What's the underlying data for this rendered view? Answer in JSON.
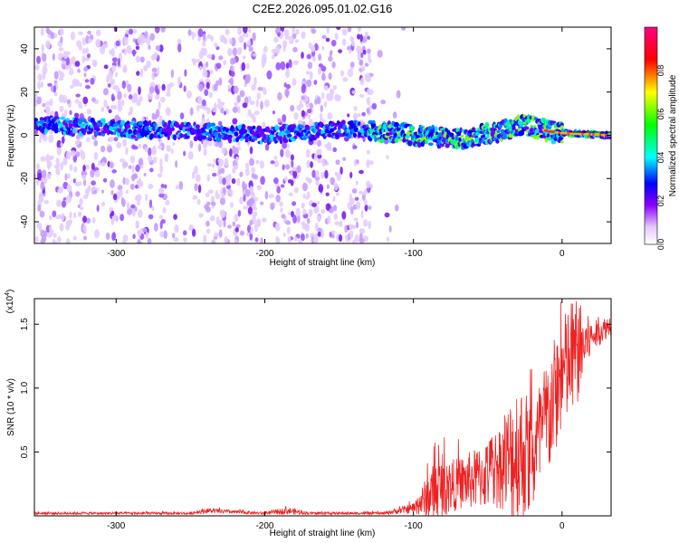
{
  "title": "C2E2.2026.095.01.02.G16",
  "chart_data": [
    {
      "type": "heatmap",
      "xlabel": "Height of straight line (km)",
      "ylabel": "Frequency (Hz)",
      "xlim": [
        -355,
        33
      ],
      "ylim": [
        -50,
        50
      ],
      "x_ticks": [
        -300,
        -200,
        -100,
        0
      ],
      "y_ticks": [
        -40,
        -20,
        0,
        20,
        40
      ],
      "colorbar": {
        "label": "Normalized spectral amplitude",
        "range": [
          0,
          1
        ],
        "ticks": [
          0,
          0.2,
          0.4,
          0.6,
          0.8
        ],
        "tick_labels": [
          "0.0",
          "0.2",
          "0.4",
          "0.6",
          "0.8"
        ],
        "colors": [
          "#ffffff",
          "#7a00ff",
          "#0000ff",
          "#00ffff",
          "#00ff00",
          "#ffff00",
          "#ff0000",
          "#ff0080"
        ]
      },
      "band_center_hz": [
        {
          "x": -350,
          "f": 5
        },
        {
          "x": -300,
          "f": 3
        },
        {
          "x": -250,
          "f": 2
        },
        {
          "x": -200,
          "f": 0
        },
        {
          "x": -140,
          "f": 3
        },
        {
          "x": -100,
          "f": 0
        },
        {
          "x": -70,
          "f": -2
        },
        {
          "x": -40,
          "f": 2
        },
        {
          "x": -25,
          "f": 5
        },
        {
          "x": -10,
          "f": 2
        },
        {
          "x": 0,
          "f": 1
        },
        {
          "x": 33,
          "f": 0
        }
      ],
      "noise_columns_km": [
        [
          -352,
          -315
        ],
        [
          -305,
          -268
        ],
        [
          -245,
          -205
        ],
        [
          -195,
          -150
        ],
        [
          -145,
          -128
        ]
      ]
    },
    {
      "type": "line",
      "xlabel": "Height of straight line (km)",
      "ylabel": "SNR (10 * v/v)",
      "y_multiplier_label": "(x10",
      "y_multiplier_exp": "4",
      "y_multiplier_close": ")",
      "xlim": [
        -355,
        33
      ],
      "ylim": [
        0,
        1.7
      ],
      "x_ticks": [
        -300,
        -200,
        -100,
        0
      ],
      "y_ticks": [
        0.5,
        1.0,
        1.5
      ],
      "y_tick_labels": [
        "0.5",
        "1.0",
        "1.5"
      ],
      "line_color": "#ee2222",
      "series_envelope": [
        {
          "x": -355,
          "mean": 0.02,
          "amp": 0.01
        },
        {
          "x": -250,
          "mean": 0.02,
          "amp": 0.01
        },
        {
          "x": -240,
          "mean": 0.04,
          "amp": 0.02
        },
        {
          "x": -200,
          "mean": 0.02,
          "amp": 0.01
        },
        {
          "x": -185,
          "mean": 0.04,
          "amp": 0.03
        },
        {
          "x": -170,
          "mean": 0.02,
          "amp": 0.01
        },
        {
          "x": -120,
          "mean": 0.02,
          "amp": 0.01
        },
        {
          "x": -100,
          "mean": 0.06,
          "amp": 0.04
        },
        {
          "x": -85,
          "mean": 0.2,
          "amp": 0.25
        },
        {
          "x": -70,
          "mean": 0.25,
          "amp": 0.2
        },
        {
          "x": -55,
          "mean": 0.3,
          "amp": 0.25
        },
        {
          "x": -40,
          "mean": 0.4,
          "amp": 0.35
        },
        {
          "x": -30,
          "mean": 0.5,
          "amp": 0.6
        },
        {
          "x": -20,
          "mean": 0.45,
          "amp": 0.45
        },
        {
          "x": -10,
          "mean": 0.75,
          "amp": 0.5
        },
        {
          "x": 0,
          "mean": 1.1,
          "amp": 0.45
        },
        {
          "x": 8,
          "mean": 1.25,
          "amp": 0.5
        },
        {
          "x": 20,
          "mean": 1.4,
          "amp": 0.12
        },
        {
          "x": 33,
          "mean": 1.5,
          "amp": 0.08
        }
      ]
    }
  ]
}
